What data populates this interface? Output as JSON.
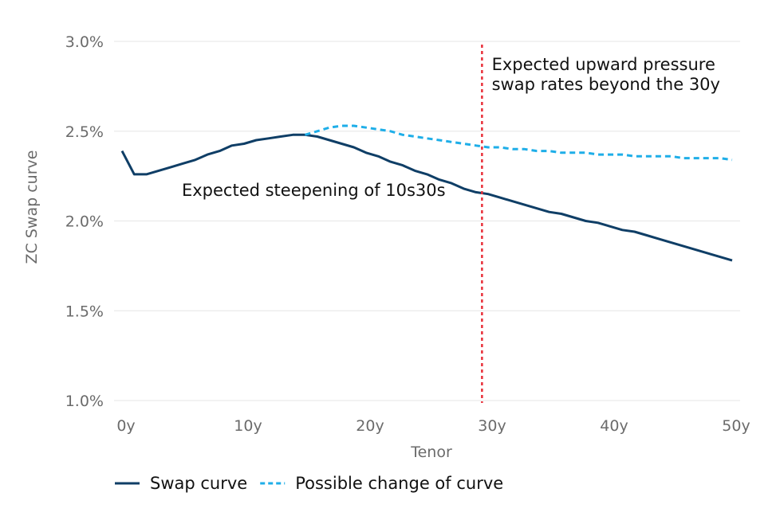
{
  "chart_data": {
    "type": "line",
    "xlabel": "Tenor",
    "ylabel": "ZC Swap curve",
    "xlim": [
      0,
      50
    ],
    "ylim": [
      1.0,
      3.0
    ],
    "x_ticks": [
      {
        "value": 0,
        "label": "0y"
      },
      {
        "value": 10,
        "label": "10y"
      },
      {
        "value": 20,
        "label": "20y"
      },
      {
        "value": 30,
        "label": "30y"
      },
      {
        "value": 40,
        "label": "40y"
      },
      {
        "value": 50,
        "label": "50y"
      }
    ],
    "y_ticks": [
      {
        "value": 1.0,
        "label": "1.0%"
      },
      {
        "value": 1.5,
        "label": "1.5%"
      },
      {
        "value": 2.0,
        "label": "2.0%"
      },
      {
        "value": 2.5,
        "label": "2.5%"
      },
      {
        "value": 3.0,
        "label": "3.0%"
      }
    ],
    "grid": "horizontal",
    "legend_position": "bottom-left",
    "series": [
      {
        "name": "Swap curve",
        "color": "#0f3e66",
        "style": "solid",
        "x": [
          0,
          1,
          2,
          3,
          4,
          5,
          6,
          7,
          8,
          9,
          10,
          11,
          12,
          13,
          14,
          15,
          16,
          17,
          18,
          19,
          20,
          21,
          22,
          23,
          24,
          25,
          26,
          27,
          28,
          29,
          30,
          31,
          32,
          33,
          34,
          35,
          36,
          37,
          38,
          39,
          40,
          41,
          42,
          43,
          44,
          45,
          46,
          47,
          48,
          49,
          50
        ],
        "values": [
          2.39,
          2.26,
          2.26,
          2.28,
          2.3,
          2.32,
          2.34,
          2.37,
          2.39,
          2.42,
          2.43,
          2.45,
          2.46,
          2.47,
          2.48,
          2.48,
          2.47,
          2.45,
          2.43,
          2.41,
          2.38,
          2.36,
          2.33,
          2.31,
          2.28,
          2.26,
          2.23,
          2.21,
          2.18,
          2.16,
          2.15,
          2.13,
          2.11,
          2.09,
          2.07,
          2.05,
          2.04,
          2.02,
          2.0,
          1.99,
          1.97,
          1.95,
          1.94,
          1.92,
          1.9,
          1.88,
          1.86,
          1.84,
          1.82,
          1.8,
          1.78
        ]
      },
      {
        "name": "Possible change of curve",
        "color": "#1eaee8",
        "style": "dashed",
        "x": [
          15,
          16,
          17,
          18,
          19,
          20,
          21,
          22,
          23,
          24,
          25,
          26,
          27,
          28,
          29,
          30,
          31,
          32,
          33,
          34,
          35,
          36,
          37,
          38,
          39,
          40,
          41,
          42,
          43,
          44,
          45,
          46,
          47,
          48,
          49,
          50
        ],
        "values": [
          2.48,
          2.5,
          2.52,
          2.53,
          2.53,
          2.52,
          2.51,
          2.5,
          2.48,
          2.47,
          2.46,
          2.45,
          2.44,
          2.43,
          2.42,
          2.41,
          2.41,
          2.4,
          2.4,
          2.39,
          2.39,
          2.38,
          2.38,
          2.38,
          2.37,
          2.37,
          2.37,
          2.36,
          2.36,
          2.36,
          2.36,
          2.35,
          2.35,
          2.35,
          2.35,
          2.34
        ]
      }
    ],
    "reference_line": {
      "axis": "x",
      "value": 29.5,
      "color": "#e8303a",
      "style": "dotted"
    },
    "annotations": [
      {
        "text": "Expected steepening of 10s30s",
        "x": 4.9,
        "y": 2.14
      },
      {
        "text": "Expected upward pressure",
        "x": 30.3,
        "y": 2.84
      },
      {
        "text": "swap rates beyond the 30y",
        "x": 30.3,
        "y": 2.73
      }
    ]
  }
}
